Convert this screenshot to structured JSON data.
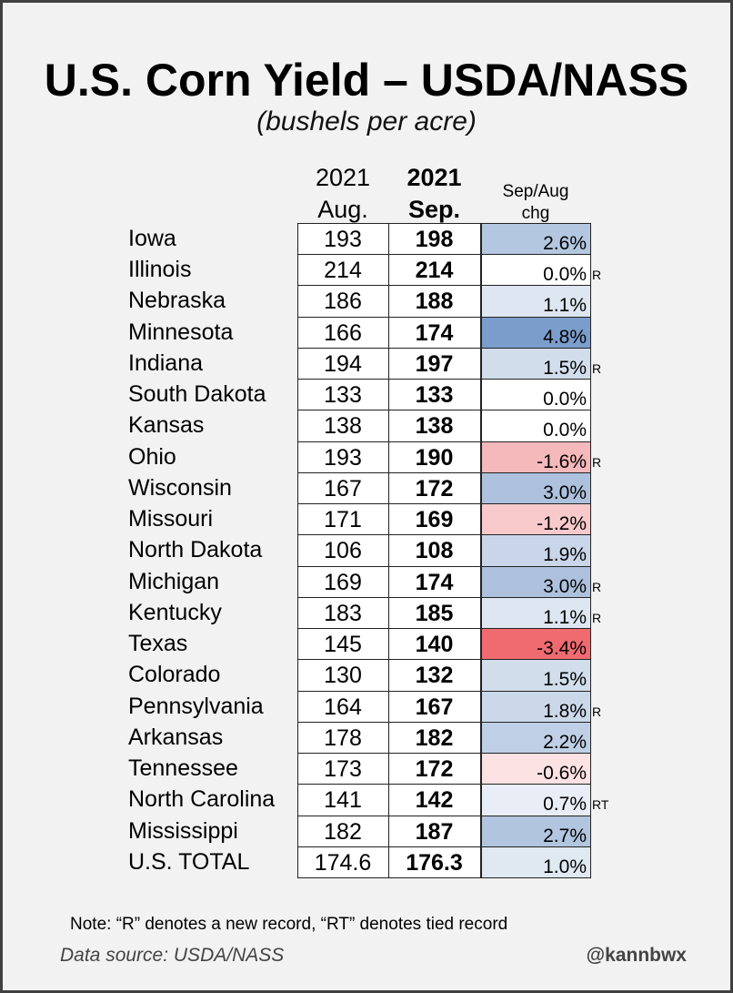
{
  "header": {
    "title": "U.S. Corn Yield – USDA/NASS",
    "subtitle": "(bushels per acre)"
  },
  "table": {
    "columns": [
      {
        "line1": "2021",
        "line2": "Aug."
      },
      {
        "line1": "2021",
        "line2": "Sep."
      },
      {
        "line1": "Sep/Aug",
        "line2": "chg"
      }
    ],
    "rows": [
      {
        "state": "Iowa",
        "aug": "193",
        "sep": "198",
        "chg": "2.6%",
        "color": "#b4c7e0"
      },
      {
        "state": "Illinois",
        "aug": "214",
        "sep": "214",
        "chg": "0.0%",
        "color": "#ffffff",
        "record": "R"
      },
      {
        "state": "Nebraska",
        "aug": "186",
        "sep": "188",
        "chg": "1.1%",
        "color": "#dde6f1"
      },
      {
        "state": "Minnesota",
        "aug": "166",
        "sep": "174",
        "chg": "4.8%",
        "color": "#7b9dcb"
      },
      {
        "state": "Indiana",
        "aug": "194",
        "sep": "197",
        "chg": "1.5%",
        "color": "#d2ddec",
        "record": "R"
      },
      {
        "state": "South Dakota",
        "aug": "133",
        "sep": "133",
        "chg": "0.0%",
        "color": "#ffffff"
      },
      {
        "state": "Kansas",
        "aug": "138",
        "sep": "138",
        "chg": "0.0%",
        "color": "#ffffff"
      },
      {
        "state": "Ohio",
        "aug": "193",
        "sep": "190",
        "chg": "-1.6%",
        "color": "#f5b8bb",
        "record": "R"
      },
      {
        "state": "Wisconsin",
        "aug": "167",
        "sep": "172",
        "chg": "3.0%",
        "color": "#adc1dd"
      },
      {
        "state": "Missouri",
        "aug": "171",
        "sep": "169",
        "chg": "-1.2%",
        "color": "#f8c9cb"
      },
      {
        "state": "North Dakota",
        "aug": "106",
        "sep": "108",
        "chg": "1.9%",
        "color": "#c9d6e9"
      },
      {
        "state": "Michigan",
        "aug": "169",
        "sep": "174",
        "chg": "3.0%",
        "color": "#adc1dd",
        "record": "R"
      },
      {
        "state": "Kentucky",
        "aug": "183",
        "sep": "185",
        "chg": "1.1%",
        "color": "#dde6f1",
        "record": "R"
      },
      {
        "state": "Texas",
        "aug": "145",
        "sep": "140",
        "chg": "-3.4%",
        "color": "#f06b70"
      },
      {
        "state": "Colorado",
        "aug": "130",
        "sep": "132",
        "chg": "1.5%",
        "color": "#d2ddec"
      },
      {
        "state": "Pennsylvania",
        "aug": "164",
        "sep": "167",
        "chg": "1.8%",
        "color": "#cbd8ea",
        "record": "R"
      },
      {
        "state": "Arkansas",
        "aug": "178",
        "sep": "182",
        "chg": "2.2%",
        "color": "#bfcfe5"
      },
      {
        "state": "Tennessee",
        "aug": "173",
        "sep": "172",
        "chg": "-0.6%",
        "color": "#fce2e3"
      },
      {
        "state": "North Carolina",
        "aug": "141",
        "sep": "142",
        "chg": "0.7%",
        "color": "#e9eef6",
        "record": "RT"
      },
      {
        "state": "Mississippi",
        "aug": "182",
        "sep": "187",
        "chg": "2.7%",
        "color": "#b2c5df"
      },
      {
        "state": "U.S. TOTAL",
        "aug": "174.6",
        "sep": "176.3",
        "chg": "1.0%",
        "color": "#e0e8f2"
      }
    ]
  },
  "footer": {
    "note": "Note: “R” denotes a new record, “RT” denotes tied record",
    "source": "Data source: USDA/NASS",
    "handle": "@kannbwx"
  }
}
